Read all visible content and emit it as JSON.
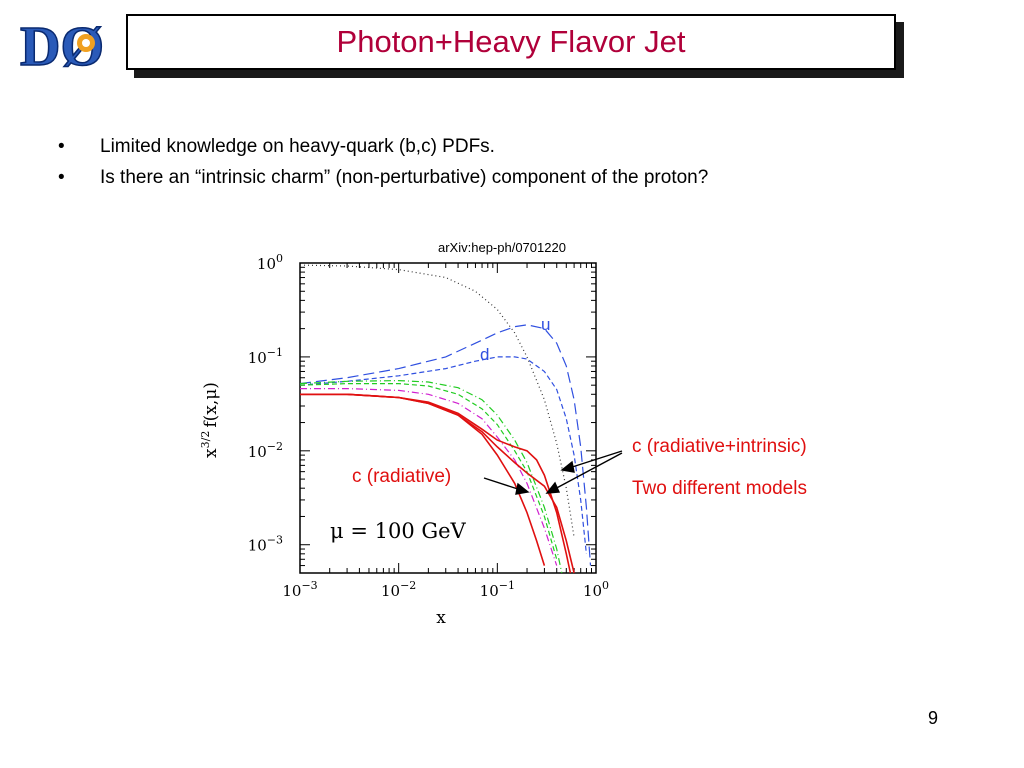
{
  "slide": {
    "title": "Photon+Heavy Flavor Jet",
    "bullets": [
      "Limited knowledge on heavy-quark (b,c) PDFs.",
      "Is there an “intrinsic charm” (non-perturbative) component of the proton?"
    ],
    "bullet_symbol": "•",
    "page_number": "9",
    "source": "arXiv:hep-ph/0701220",
    "annotations": {
      "radiative": "c (radiative)",
      "radiative_intrinsic": "c (radiative+intrinsic)",
      "models": "Two different models"
    },
    "colors": {
      "title": "#b0003a",
      "annotation": "#e01010",
      "u_d": "#3050e0",
      "c": "#e01010",
      "green": "#22cc22",
      "magenta": "#d020d0"
    }
  },
  "logo": {
    "text": "DØ"
  },
  "chart_data": {
    "type": "line",
    "xscale": "log",
    "yscale": "log",
    "xlim": [
      0.001,
      1
    ],
    "ylim": [
      0.0005,
      1
    ],
    "xlabel": "x",
    "ylabel": "x^{3/2} f(x,μ)",
    "ylabel_main": "x",
    "ylabel_sup": "3/2",
    "ylabel_func": "f(x,μ)",
    "x_ticks": [
      {
        "base": "10",
        "exp": "−3",
        "value": 0.001
      },
      {
        "base": "10",
        "exp": "−2",
        "value": 0.01
      },
      {
        "base": "10",
        "exp": "−1",
        "value": 0.1
      },
      {
        "base": "10",
        "exp": "0",
        "value": 1
      }
    ],
    "y_ticks": [
      {
        "base": "10",
        "exp": "0",
        "value": 1
      },
      {
        "base": "10",
        "exp": "−1",
        "value": 0.1
      },
      {
        "base": "10",
        "exp": "−2",
        "value": 0.01
      },
      {
        "base": "10",
        "exp": "−3",
        "value": 0.001
      }
    ],
    "annotation": "μ = 100 GeV",
    "series": [
      {
        "name": "u",
        "style": "dashed-long",
        "color": "#3050e0",
        "points": [
          [
            0.001,
            0.052
          ],
          [
            0.003,
            0.06
          ],
          [
            0.01,
            0.075
          ],
          [
            0.03,
            0.1
          ],
          [
            0.06,
            0.14
          ],
          [
            0.1,
            0.18
          ],
          [
            0.15,
            0.21
          ],
          [
            0.2,
            0.22
          ],
          [
            0.3,
            0.2
          ],
          [
            0.4,
            0.14
          ],
          [
            0.5,
            0.08
          ],
          [
            0.6,
            0.035
          ],
          [
            0.7,
            0.011
          ],
          [
            0.8,
            0.0025
          ],
          [
            0.88,
            0.0006
          ]
        ]
      },
      {
        "name": "d",
        "style": "dashed",
        "color": "#3050e0",
        "points": [
          [
            0.001,
            0.05
          ],
          [
            0.003,
            0.055
          ],
          [
            0.01,
            0.063
          ],
          [
            0.03,
            0.075
          ],
          [
            0.06,
            0.09
          ],
          [
            0.1,
            0.1
          ],
          [
            0.15,
            0.1
          ],
          [
            0.2,
            0.095
          ],
          [
            0.3,
            0.07
          ],
          [
            0.4,
            0.045
          ],
          [
            0.5,
            0.022
          ],
          [
            0.6,
            0.009
          ],
          [
            0.7,
            0.003
          ],
          [
            0.8,
            0.0008
          ]
        ]
      },
      {
        "style": "dotted",
        "color": "#333333",
        "points": [
          [
            0.001,
            0.95
          ],
          [
            0.003,
            0.93
          ],
          [
            0.01,
            0.85
          ],
          [
            0.03,
            0.7
          ],
          [
            0.06,
            0.5
          ],
          [
            0.1,
            0.32
          ],
          [
            0.15,
            0.18
          ],
          [
            0.2,
            0.1
          ],
          [
            0.3,
            0.035
          ],
          [
            0.4,
            0.012
          ],
          [
            0.5,
            0.004
          ],
          [
            0.6,
            0.0012
          ]
        ]
      },
      {
        "style": "dash-dot",
        "color": "#22cc22",
        "points": [
          [
            0.001,
            0.052
          ],
          [
            0.003,
            0.055
          ],
          [
            0.01,
            0.056
          ],
          [
            0.02,
            0.054
          ],
          [
            0.04,
            0.047
          ],
          [
            0.07,
            0.035
          ],
          [
            0.1,
            0.024
          ],
          [
            0.15,
            0.013
          ],
          [
            0.2,
            0.0075
          ],
          [
            0.3,
            0.0025
          ],
          [
            0.4,
            0.0009
          ],
          [
            0.45,
            0.0005
          ]
        ]
      },
      {
        "style": "dashed",
        "color": "#22cc22",
        "points": [
          [
            0.001,
            0.05
          ],
          [
            0.003,
            0.052
          ],
          [
            0.01,
            0.052
          ],
          [
            0.02,
            0.049
          ],
          [
            0.04,
            0.04
          ],
          [
            0.07,
            0.028
          ],
          [
            0.1,
            0.019
          ],
          [
            0.15,
            0.01
          ],
          [
            0.2,
            0.006
          ],
          [
            0.3,
            0.002
          ],
          [
            0.4,
            0.0007
          ]
        ]
      },
      {
        "style": "dash-dot",
        "color": "#d020d0",
        "points": [
          [
            0.001,
            0.046
          ],
          [
            0.003,
            0.046
          ],
          [
            0.01,
            0.044
          ],
          [
            0.02,
            0.04
          ],
          [
            0.04,
            0.032
          ],
          [
            0.07,
            0.022
          ],
          [
            0.1,
            0.014
          ],
          [
            0.15,
            0.008
          ],
          [
            0.2,
            0.0045
          ],
          [
            0.3,
            0.0015
          ],
          [
            0.4,
            0.0006
          ]
        ]
      },
      {
        "name": "c (radiative)",
        "style": "solid",
        "color": "#e01010",
        "points": [
          [
            0.001,
            0.04
          ],
          [
            0.003,
            0.04
          ],
          [
            0.01,
            0.037
          ],
          [
            0.02,
            0.032
          ],
          [
            0.04,
            0.024
          ],
          [
            0.07,
            0.015
          ],
          [
            0.1,
            0.009
          ],
          [
            0.15,
            0.0045
          ],
          [
            0.2,
            0.0022
          ],
          [
            0.25,
            0.0011
          ],
          [
            0.3,
            0.0006
          ]
        ]
      },
      {
        "name": "c (radiative+intrinsic) model 1",
        "style": "solid",
        "color": "#e01010",
        "points": [
          [
            0.001,
            0.04
          ],
          [
            0.003,
            0.04
          ],
          [
            0.01,
            0.037
          ],
          [
            0.02,
            0.033
          ],
          [
            0.04,
            0.025
          ],
          [
            0.07,
            0.017
          ],
          [
            0.1,
            0.013
          ],
          [
            0.15,
            0.011
          ],
          [
            0.2,
            0.01
          ],
          [
            0.25,
            0.008
          ],
          [
            0.3,
            0.0055
          ],
          [
            0.4,
            0.0022
          ],
          [
            0.5,
            0.0008
          ],
          [
            0.55,
            0.0005
          ]
        ]
      },
      {
        "name": "c (radiative+intrinsic) model 2",
        "style": "solid",
        "color": "#e01010",
        "points": [
          [
            0.001,
            0.04
          ],
          [
            0.003,
            0.04
          ],
          [
            0.01,
            0.037
          ],
          [
            0.02,
            0.032
          ],
          [
            0.04,
            0.024
          ],
          [
            0.07,
            0.016
          ],
          [
            0.1,
            0.011
          ],
          [
            0.15,
            0.0075
          ],
          [
            0.2,
            0.0058
          ],
          [
            0.3,
            0.0042
          ],
          [
            0.4,
            0.0025
          ],
          [
            0.5,
            0.0011
          ],
          [
            0.6,
            0.0005
          ]
        ]
      }
    ]
  }
}
